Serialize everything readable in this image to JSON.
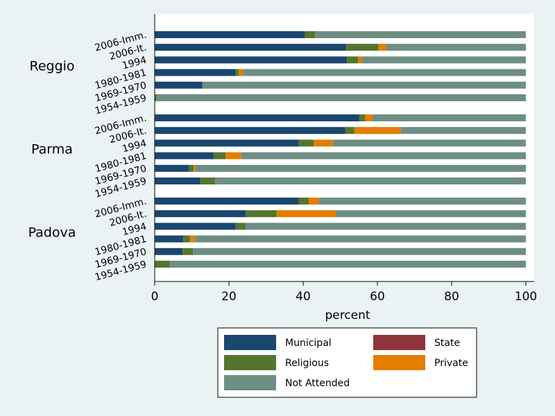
{
  "chart_data": {
    "type": "bar",
    "orientation": "horizontal",
    "stacked": true,
    "xlabel": "percent",
    "xlim": [
      0,
      100
    ],
    "xticks": [
      0,
      20,
      40,
      60,
      80,
      100
    ],
    "grid": false,
    "legend_position": "bottom",
    "groups": [
      {
        "name": "Reggio",
        "categories": [
          "2006-Imm.",
          "2006-It.",
          "1994",
          "1980-1981",
          "1969-1970",
          "1954-1959"
        ],
        "series": {
          "Municipal": [
            40.5,
            51.5,
            51.8,
            21.8,
            12.8,
            0
          ],
          "Religious": [
            2.7,
            8.8,
            3.0,
            0.8,
            0,
            0.5
          ],
          "State": [
            0,
            0,
            0,
            0,
            0,
            0
          ],
          "Private": [
            0,
            2.0,
            1.0,
            1.2,
            0,
            0
          ],
          "Not Attended": [
            56.8,
            37.7,
            44.2,
            76.2,
            87.2,
            99.5
          ]
        }
      },
      {
        "name": "Parma",
        "categories": [
          "2006-Imm.",
          "2006-It.",
          "1994",
          "1980-1981",
          "1969-1970",
          "1954-1959"
        ],
        "series": {
          "Municipal": [
            55.2,
            51.3,
            38.8,
            15.8,
            9.3,
            12.3
          ],
          "Religious": [
            1.5,
            2.5,
            4.0,
            3.3,
            1.2,
            4.0
          ],
          "State": [
            0,
            0,
            0,
            0,
            0,
            0
          ],
          "Private": [
            2.0,
            12.5,
            5.2,
            4.2,
            0.5,
            0
          ],
          "Not Attended": [
            41.3,
            33.7,
            52.0,
            76.7,
            89.0,
            83.7
          ]
        }
      },
      {
        "name": "Padova",
        "categories": [
          "2006-Imm.",
          "2006-It.",
          "1994",
          "1980-1981",
          "1969-1970",
          "1954-1959"
        ],
        "series": {
          "Municipal": [
            38.8,
            24.5,
            21.8,
            7.7,
            7.5,
            0
          ],
          "Religious": [
            2.7,
            8.3,
            2.7,
            1.8,
            2.8,
            4.0
          ],
          "State": [
            0,
            0,
            0,
            0,
            0,
            0
          ],
          "Private": [
            2.7,
            16.0,
            0,
            1.3,
            0,
            0
          ],
          "Not Attended": [
            55.8,
            51.2,
            75.5,
            89.2,
            89.7,
            96.0
          ]
        }
      }
    ],
    "series_order": [
      "Municipal",
      "Religious",
      "State",
      "Private",
      "Not Attended"
    ],
    "colors": {
      "Municipal": "#1a476f",
      "Religious": "#55752f",
      "State": "#90353b",
      "Private": "#e37e00",
      "Not Attended": "#6e8e84"
    },
    "legend": [
      [
        "Municipal",
        "State"
      ],
      [
        "Religious",
        "Private"
      ],
      [
        "Not Attended"
      ]
    ]
  }
}
